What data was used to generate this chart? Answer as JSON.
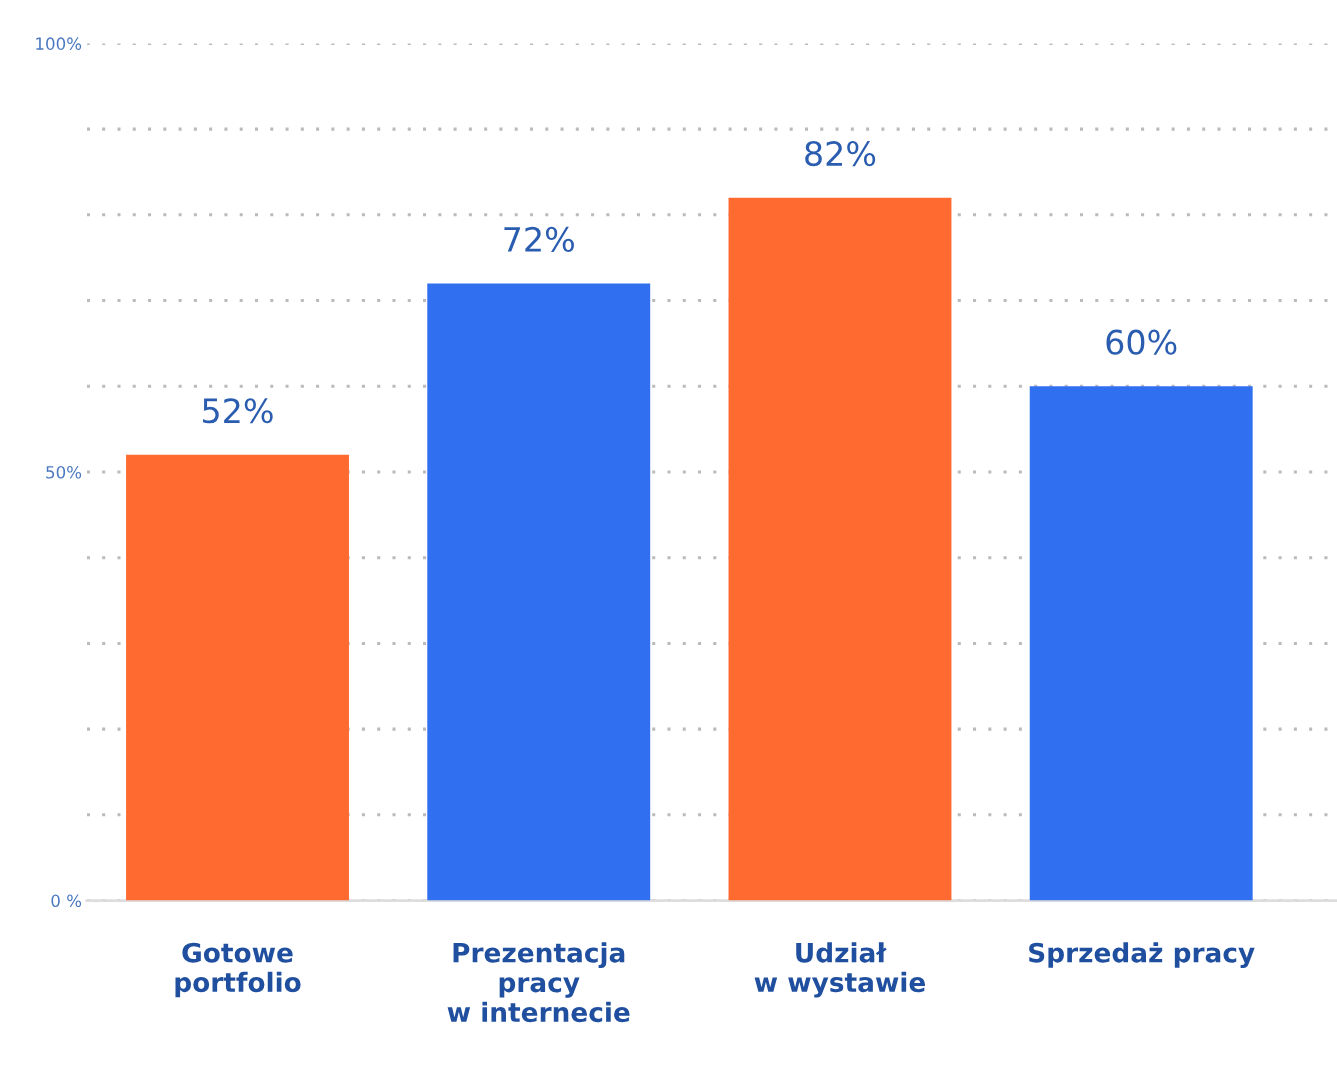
{
  "chart_data": {
    "type": "bar",
    "categories": [
      "Gotowe\nportfolio",
      "Prezentacja\npracy\nw internecie",
      "Udział\nw wystawie",
      "Sprzedaż pracy"
    ],
    "values": [
      52,
      72,
      82,
      60
    ],
    "colors": [
      "#ff6a30",
      "#2f6ff0",
      "#ff6a30",
      "#2f6ff0"
    ],
    "value_labels": [
      "52%",
      "72%",
      "82%",
      "60%"
    ],
    "ylim": [
      0,
      100
    ],
    "yticks": [
      {
        "value": 0,
        "label": "0 %"
      },
      {
        "value": 10,
        "label": null
      },
      {
        "value": 20,
        "label": null
      },
      {
        "value": 30,
        "label": null
      },
      {
        "value": 40,
        "label": null
      },
      {
        "value": 50,
        "label": "50%"
      },
      {
        "value": 60,
        "label": null
      },
      {
        "value": 70,
        "label": null
      },
      {
        "value": 80,
        "label": null
      },
      {
        "value": 90,
        "label": null
      },
      {
        "value": 100,
        "label": "100%"
      }
    ],
    "grid": "y",
    "legend": false
  }
}
